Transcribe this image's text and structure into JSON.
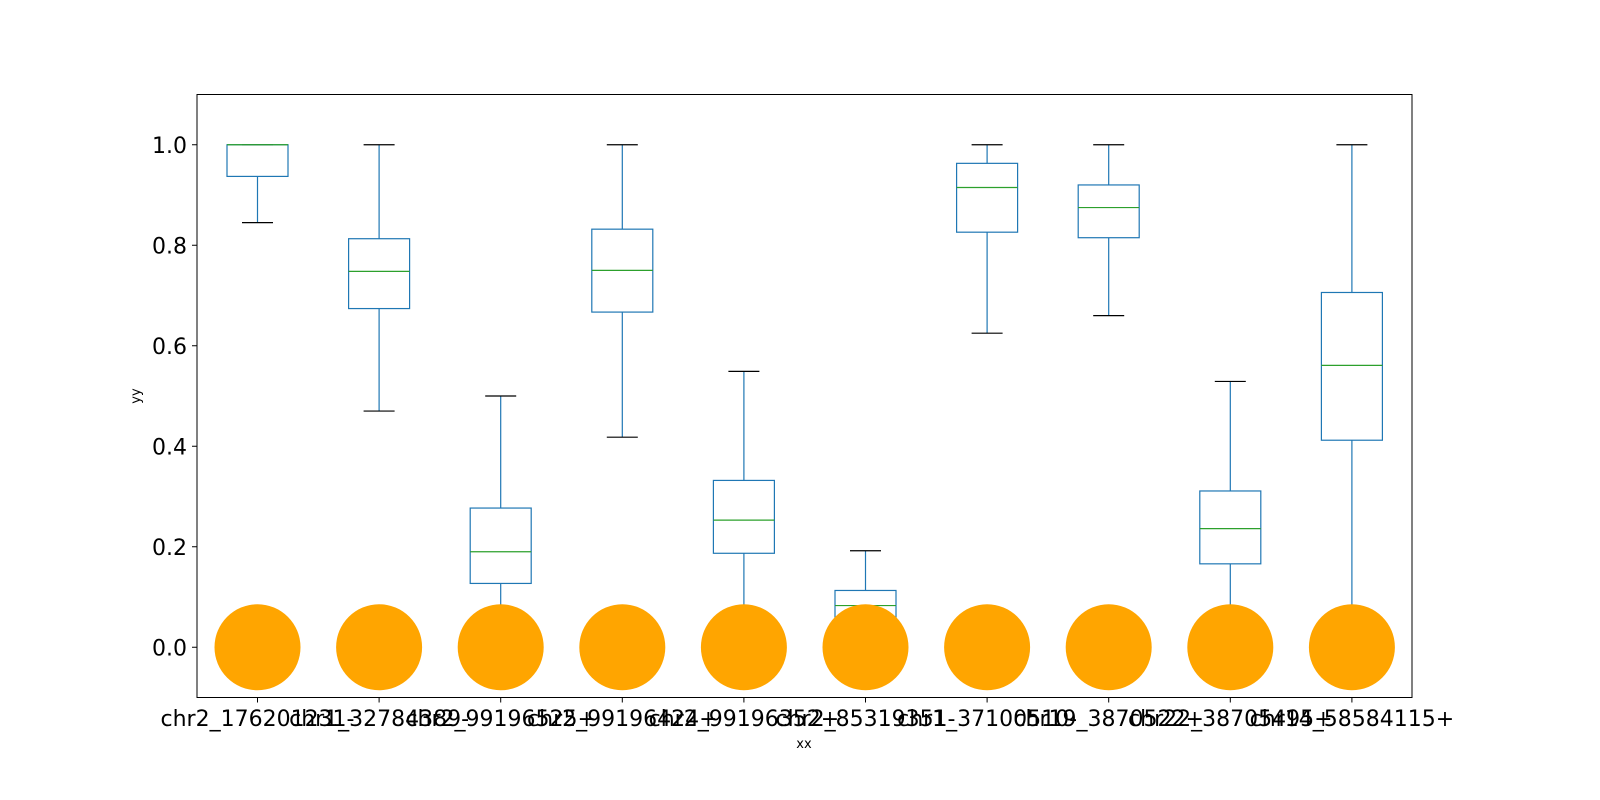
{
  "chart_data": {
    "type": "box",
    "title": "",
    "xlabel": "xx",
    "ylabel": "yy",
    "ylim": [
      -0.1,
      1.1
    ],
    "yticks": [
      "0.0",
      "0.2",
      "0.4",
      "0.6",
      "0.8",
      "1.0"
    ],
    "grid": false,
    "colors": {
      "box": "#1f77b4",
      "median": "#2ca02c",
      "cap": "#000000",
      "marker": "#ffa500"
    },
    "categories": [
      "chr2_176201231-",
      "chr1_32784389-",
      "chr2_99196525+",
      "chr2_99196424+",
      "chr2_99196352+",
      "chr2_85319351-",
      "chr1_37100510-",
      "chr19_3870522+",
      "chr22_38705495+",
      "chr14_58584115+"
    ],
    "boxes": [
      {
        "whislo": 0.845,
        "q1": 0.937,
        "med": 1.0,
        "q3": 1.0,
        "whishi": 1.0
      },
      {
        "whislo": 0.47,
        "q1": 0.674,
        "med": 0.748,
        "q3": 0.813,
        "whishi": 1.0
      },
      {
        "whislo": 0.01,
        "q1": 0.127,
        "med": 0.19,
        "q3": 0.277,
        "whishi": 0.5
      },
      {
        "whislo": 0.418,
        "q1": 0.667,
        "med": 0.75,
        "q3": 0.832,
        "whishi": 1.0
      },
      {
        "whislo": 0.01,
        "q1": 0.187,
        "med": 0.253,
        "q3": 0.332,
        "whishi": 0.549
      },
      {
        "whislo": 0.005,
        "q1": 0.06,
        "med": 0.083,
        "q3": 0.113,
        "whishi": 0.192
      },
      {
        "whislo": 0.625,
        "q1": 0.826,
        "med": 0.915,
        "q3": 0.963,
        "whishi": 1.0
      },
      {
        "whislo": 0.66,
        "q1": 0.815,
        "med": 0.875,
        "q3": 0.92,
        "whishi": 1.0
      },
      {
        "whislo": 0.015,
        "q1": 0.166,
        "med": 0.236,
        "q3": 0.311,
        "whishi": 0.529
      },
      {
        "whislo": 0.01,
        "q1": 0.412,
        "med": 0.561,
        "q3": 0.706,
        "whishi": 1.0
      }
    ],
    "markers": [
      0,
      0,
      0,
      0,
      0,
      0,
      0,
      0,
      0,
      0
    ]
  }
}
